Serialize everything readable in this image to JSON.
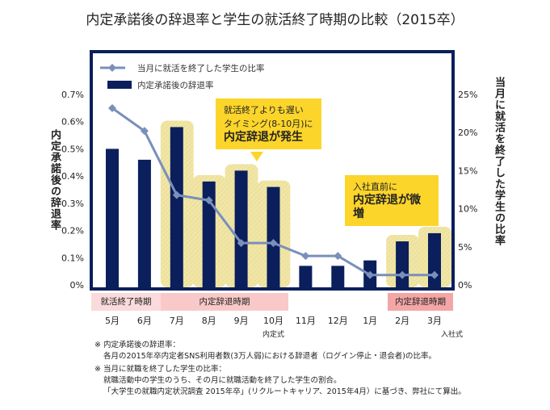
{
  "title": "内定承諾後の辞退率と学生の就活終了時期の比較（2015卒）",
  "chart_data": {
    "type": "bar+line",
    "title": "内定承諾後の辞退率と学生の就活終了時期の比較（2015卒）",
    "categories": [
      "5月",
      "6月",
      "7月",
      "8月",
      "9月",
      "10月",
      "11月",
      "12月",
      "1月",
      "2月",
      "3月"
    ],
    "series": [
      {
        "name": "内定承諾後の辞退率",
        "type": "bar",
        "axis": "left",
        "color": "#0a1f5c",
        "values": [
          0.5,
          0.46,
          0.58,
          0.38,
          0.42,
          0.36,
          0.07,
          0.07,
          0.09,
          0.16,
          0.19
        ]
      },
      {
        "name": "当月に就活を終了した学生の比率",
        "type": "line",
        "axis": "right",
        "color": "#7a8fbb",
        "values": [
          23.2,
          20.2,
          11.8,
          11.1,
          5.5,
          5.5,
          3.8,
          3.8,
          1.3,
          1.3,
          1.3
        ]
      }
    ],
    "ylabel": "内定承諾後の辞退率",
    "y2label": "当月に就活を終了した学生の比率",
    "ylim": [
      0,
      0.7
    ],
    "y2lim": [
      0,
      25
    ],
    "yticks": [
      "0%",
      "0.1%",
      "0.2%",
      "0.3%",
      "0.4%",
      "0.5%",
      "0.6%",
      "0.7%"
    ],
    "y2ticks": [
      "0%",
      "5%",
      "10%",
      "15%",
      "20%",
      "25%"
    ],
    "legend": "top-left",
    "highlighted_months": [
      "7月",
      "8月",
      "9月",
      "10月",
      "2月",
      "3月"
    ],
    "periods": [
      {
        "label": "就活終了時期",
        "from": 0,
        "to": 1
      },
      {
        "label": "内定辞退時期",
        "from": 2,
        "to": 5
      },
      {
        "label": "内定辞退時期",
        "from": 9,
        "to": 10
      }
    ],
    "events": [
      {
        "label": "内定式",
        "month": "10月"
      },
      {
        "label": "入社式",
        "month": "3月"
      }
    ],
    "callouts": [
      {
        "lines": [
          "就活終了よりも遅い",
          "タイミング(8-10月)に"
        ],
        "bold": "内定辞退が発生"
      },
      {
        "lines": [
          "入社直前に"
        ],
        "bold": "内定辞退が微増"
      }
    ]
  },
  "notes": [
    {
      "head": "※ 内定承諾後の辞退率：",
      "lines": [
        "各月の2015年卒内定者SNS利用者数(3万人弱)における辞退者（ログイン停止・退会者)の比率。"
      ]
    },
    {
      "head": "※ 当月に就職を終了した学生の比率：",
      "lines": [
        "就職活動中の学生のうち、その月に就職活動を終了した学生の割合。",
        "「大学生の就職内定状況調査 2015年卒」(リクルートキャリア、2015年4月）に基づき、弊社にて算出。"
      ]
    }
  ]
}
